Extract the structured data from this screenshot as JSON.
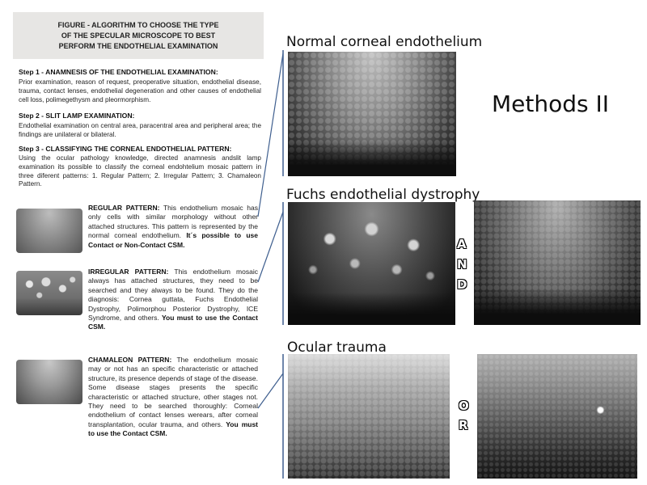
{
  "figure": {
    "title_lines": [
      "FIGURE - ALGORITHM TO CHOOSE THE TYPE",
      "OF THE SPECULAR MICROSCOPE TO BEST",
      "PERFORM THE ENDOTHELIAL EXAMINATION"
    ],
    "steps": [
      {
        "heading": "Step 1 - ANAMNESIS OF THE ENDOTHELIAL EXAMINATION:",
        "text": "Prior examination, reason of request, preoperative situation, endothelial disease, trauma, contact lenses, endothelial degeneration and other causes of endothelial cell loss, polimegethysm and pleormorphism."
      },
      {
        "heading": "Step 2 - SLIT LAMP EXAMINATION:",
        "text": "Endothelial examination on central area, paracentral area and peripheral area; the findings are unilateral or bilateral."
      },
      {
        "heading": "Step 3 - CLASSIFYING THE CORNEAL ENDOTHELIAL PATTERN:",
        "text": "Using the ocular pathology knowledge, directed anamnesis andslit lamp examination its possible to classify the corneal endohtelium mosaic pattern in three diferent patterns: 1. Regular Pattern; 2. Irregular Pattern; 3. Chamaleon Pattern."
      }
    ],
    "patterns": [
      {
        "name": "REGULAR PATTERN:",
        "text": " This endothelium mosaic has only cells with similar morphology without other attached structures. This pattern is represented by the normal corneal endothelium. ",
        "emphasis": "It´s possible to use Contact or Non-Contact CSM."
      },
      {
        "name": "IRREGULAR PATTERN:",
        "text": " This endothelium mosaic always has attached structures, they need to be searched and they always to be found. They do the diagnosis: Cornea guttata, Fuchs Endothelial Dystrophy, Polimorphou Posterior Dystrophy, ICE Syndrome, and others. ",
        "emphasis": "You must to use the Contact CSM."
      },
      {
        "name": "CHAMALEON PATTERN:",
        "text": " The endothelium mosaic may or not has an specific characteristic or attached structure, its presence depends of stage of the disease. Some disease stages presents the specific characteristic or attached structure, other stages not. They need to be searched thoroughly: Corneal endothelium of contact lenses werears, after corneal transplantation, ocular trauma, and others. ",
        "emphasis": "You must to use the Contact CSM."
      }
    ]
  },
  "right": {
    "title": "Methods II",
    "sections": [
      {
        "label": "Normal corneal endothelium"
      },
      {
        "label": "Fuchs endothelial dystrophy",
        "connector": [
          "A",
          "N",
          "D"
        ]
      },
      {
        "label": "Ocular trauma",
        "connector": [
          "O",
          "R"
        ]
      }
    ]
  }
}
